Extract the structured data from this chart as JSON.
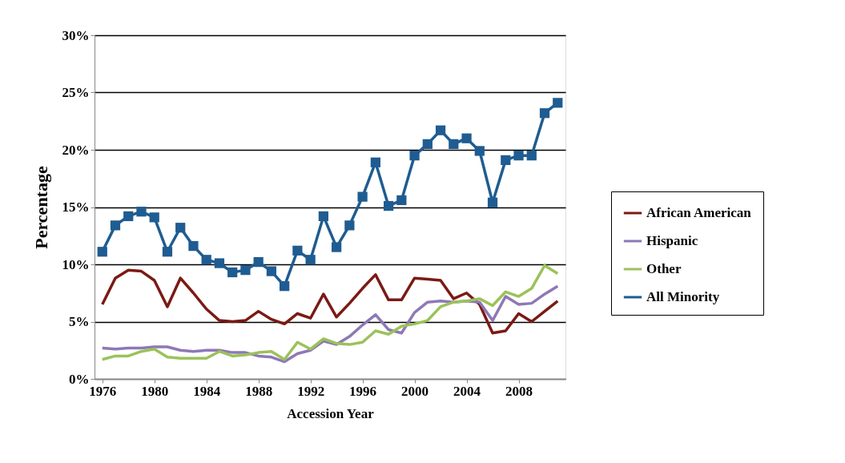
{
  "chart_data": {
    "type": "line",
    "xlabel": "Accession Year",
    "ylabel": "Percentage",
    "x": [
      1976,
      1977,
      1978,
      1979,
      1980,
      1981,
      1982,
      1983,
      1984,
      1985,
      1986,
      1987,
      1988,
      1989,
      1990,
      1991,
      1992,
      1993,
      1994,
      1995,
      1996,
      1997,
      1998,
      1999,
      2000,
      2001,
      2002,
      2003,
      2004,
      2005,
      2006,
      2007,
      2008,
      2009,
      2010,
      2011
    ],
    "series": [
      {
        "name": "African American",
        "color": "#7b1a14",
        "marker": "none",
        "values": [
          6.5,
          8.8,
          9.5,
          9.4,
          8.6,
          6.3,
          8.8,
          7.5,
          6.1,
          5.1,
          5.0,
          5.1,
          5.9,
          5.2,
          4.8,
          5.7,
          5.3,
          7.4,
          5.4,
          6.6,
          7.9,
          9.1,
          6.9,
          6.9,
          8.8,
          8.7,
          8.6,
          7.0,
          7.5,
          6.5,
          4.0,
          4.2,
          5.7,
          5.0,
          5.9,
          6.8
        ]
      },
      {
        "name": "Hispanic",
        "color": "#8e78b6",
        "marker": "none",
        "values": [
          2.7,
          2.6,
          2.7,
          2.7,
          2.8,
          2.8,
          2.5,
          2.4,
          2.5,
          2.5,
          2.3,
          2.3,
          2.0,
          1.9,
          1.5,
          2.2,
          2.5,
          3.3,
          3.0,
          3.7,
          4.7,
          5.6,
          4.3,
          4.0,
          5.8,
          6.7,
          6.8,
          6.7,
          6.8,
          6.7,
          5.1,
          7.2,
          6.5,
          6.6,
          7.4,
          8.1
        ]
      },
      {
        "name": "Other",
        "color": "#9bc25a",
        "marker": "none",
        "values": [
          1.7,
          2.0,
          2.0,
          2.4,
          2.6,
          1.9,
          1.8,
          1.8,
          1.8,
          2.4,
          2.0,
          2.1,
          2.3,
          2.4,
          1.7,
          3.2,
          2.6,
          3.5,
          3.1,
          3.0,
          3.2,
          4.2,
          3.9,
          4.6,
          4.8,
          5.1,
          6.3,
          6.7,
          6.8,
          7.0,
          6.4,
          7.6,
          7.2,
          7.9,
          9.9,
          9.2
        ]
      },
      {
        "name": "All Minority",
        "color": "#1f5c91",
        "marker": "square",
        "values": [
          11.1,
          13.4,
          14.2,
          14.6,
          14.1,
          11.1,
          13.2,
          11.6,
          10.4,
          10.1,
          9.3,
          9.5,
          10.2,
          9.4,
          8.1,
          11.2,
          10.4,
          14.2,
          11.5,
          13.4,
          15.9,
          18.9,
          15.1,
          15.6,
          19.5,
          20.5,
          21.7,
          20.5,
          21.0,
          19.9,
          15.4,
          19.1,
          19.5,
          19.5,
          23.2,
          24.1
        ]
      }
    ],
    "xlim": [
      1975.4,
      2011.6
    ],
    "xticks": [
      1976,
      1980,
      1984,
      1988,
      1992,
      1996,
      2000,
      2004,
      2008
    ],
    "ylim": [
      0,
      30
    ],
    "yticks": [
      {
        "value": 0,
        "label": "0%"
      },
      {
        "value": 5,
        "label": "5%"
      },
      {
        "value": 10,
        "label": "10%"
      },
      {
        "value": 15,
        "label": "15%"
      },
      {
        "value": 20,
        "label": "20%"
      },
      {
        "value": 25,
        "label": "25%"
      },
      {
        "value": 30,
        "label": "30%"
      }
    ],
    "grid": "y",
    "legend": "right",
    "line_style": "solid"
  }
}
